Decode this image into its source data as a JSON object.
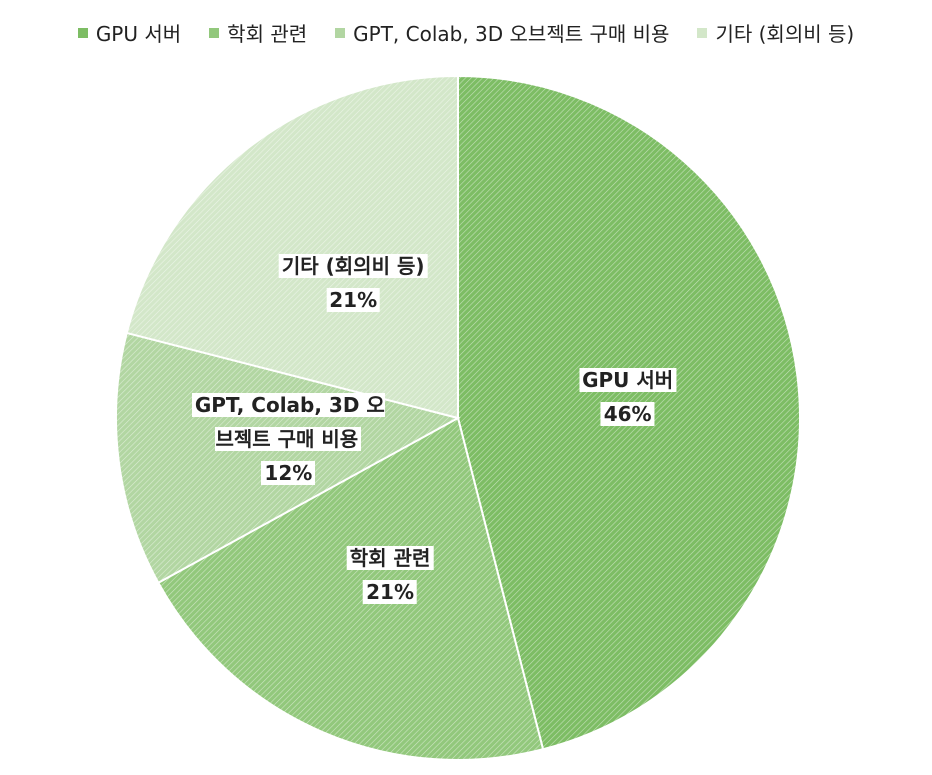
{
  "chart_data": {
    "type": "pie",
    "categories": [
      "GPU 서버",
      "학회 관련",
      "GPT, Colab, 3D 오브젝트 구매 비용",
      "기타 (회의비 등)"
    ],
    "values": [
      46,
      21,
      12,
      21
    ],
    "value_labels": [
      "46%",
      "21%",
      "12%",
      "21%"
    ],
    "colors": [
      "#7dbd64",
      "#92c87c",
      "#b2d6a2",
      "#d3e7c9"
    ],
    "legend": "top"
  }
}
